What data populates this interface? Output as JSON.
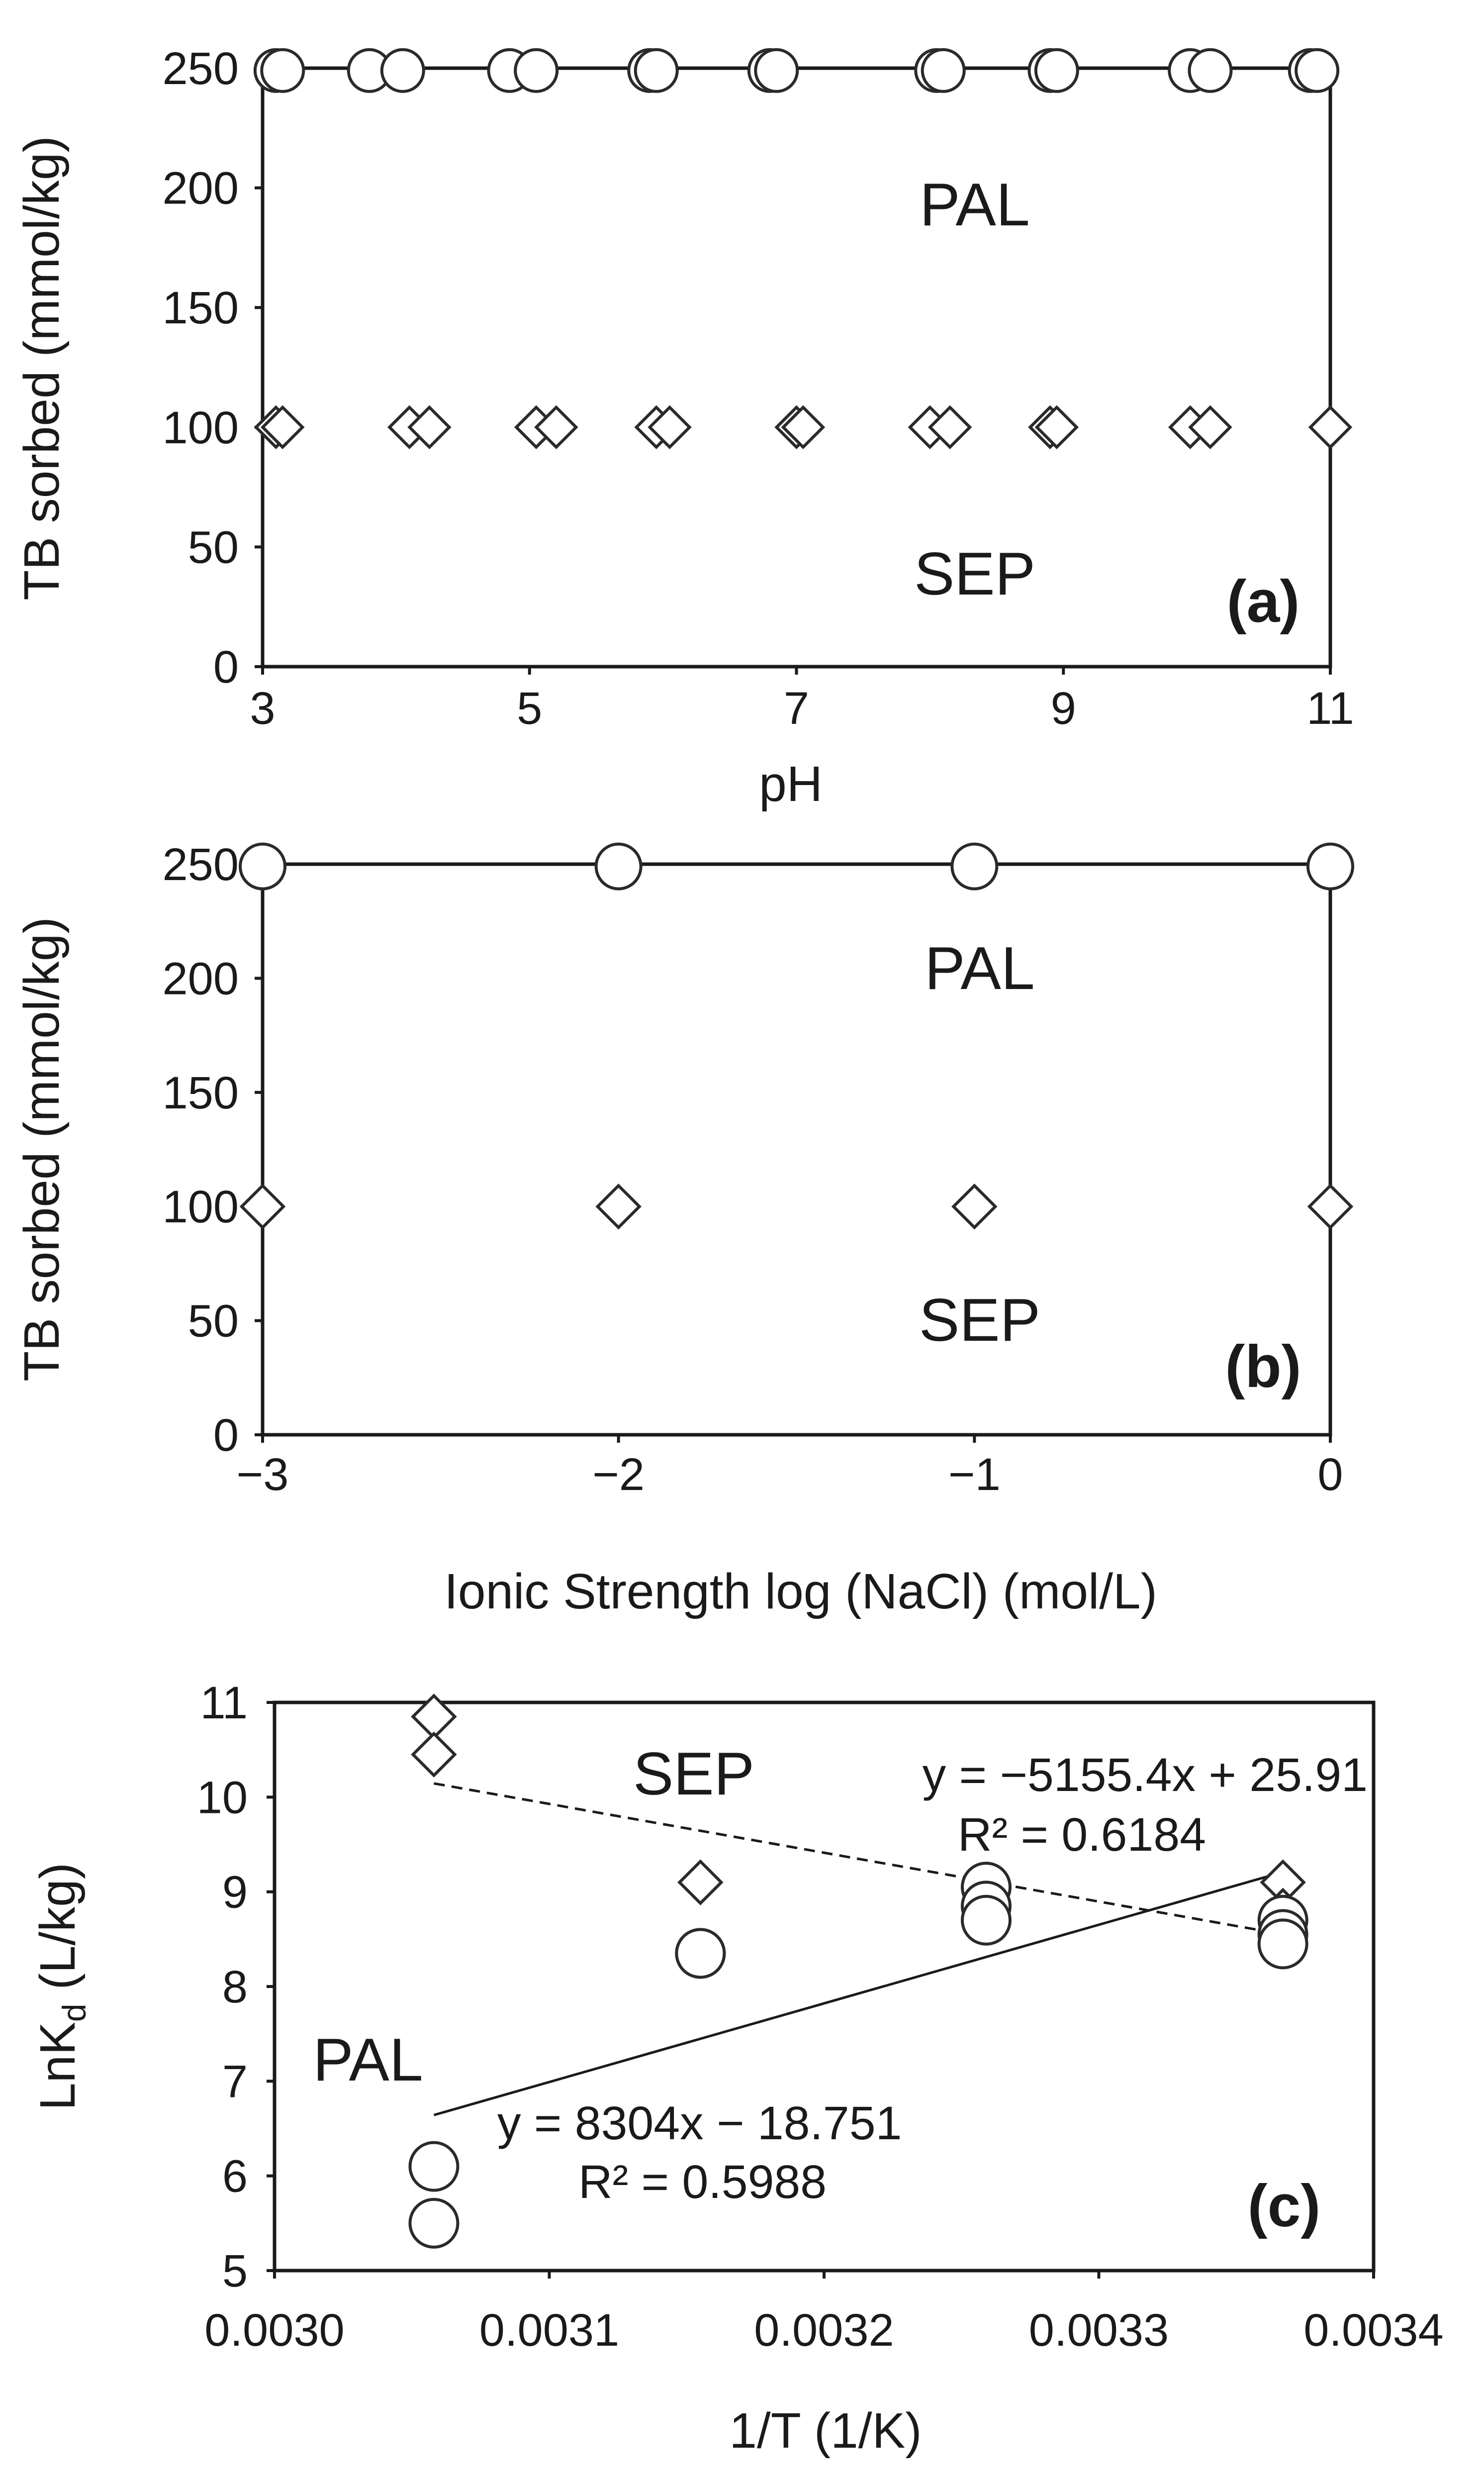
{
  "chart_data": [
    {
      "type": "scatter",
      "panel": "(a)",
      "xlabel": "pH",
      "ylabel": "TB sorbed (mmol/kg)",
      "xlim": [
        3,
        11
      ],
      "ylim": [
        0,
        250
      ],
      "x_ticks": [
        "3",
        "5",
        "7",
        "9",
        "11"
      ],
      "y_ticks": [
        "0",
        "50",
        "100",
        "150",
        "200",
        "250"
      ],
      "annotations": {
        "pal": "PAL",
        "sep": "SEP",
        "panel_label": "(a)"
      },
      "series": [
        {
          "name": "PAL",
          "marker": "circle",
          "x": [
            3.1,
            3.15,
            3.8,
            4.05,
            4.85,
            5.05,
            5.9,
            5.95,
            6.8,
            6.85,
            8.05,
            8.1,
            8.9,
            8.95,
            9.95,
            10.1,
            10.85,
            10.9
          ],
          "y": [
            249,
            249,
            249,
            249,
            249,
            249,
            249,
            249,
            249,
            249,
            249,
            249,
            249,
            249,
            249,
            249,
            249,
            249
          ]
        },
        {
          "name": "SEP",
          "marker": "diamond",
          "x": [
            3.1,
            3.15,
            4.1,
            4.25,
            5.05,
            5.2,
            5.95,
            6.05,
            7.0,
            7.05,
            8.0,
            8.15,
            8.9,
            8.95,
            9.95,
            10.1,
            11.0
          ],
          "y": [
            100,
            100,
            100,
            100,
            100,
            100,
            100,
            100,
            100,
            100,
            100,
            100,
            100,
            100,
            100,
            100,
            100
          ]
        }
      ]
    },
    {
      "type": "scatter",
      "panel": "(b)",
      "xlabel": "Ionic Strength log (NaCl) (mol/L)",
      "ylabel": "TB sorbed (mmol/kg)",
      "xlim": [
        -3,
        0
      ],
      "ylim": [
        0,
        250
      ],
      "x_ticks": [
        "−3",
        "−2",
        "−1",
        "0"
      ],
      "y_ticks": [
        "0",
        "50",
        "100",
        "150",
        "200",
        "250"
      ],
      "annotations": {
        "pal": "PAL",
        "sep": "SEP",
        "panel_label": "(b)"
      },
      "series": [
        {
          "name": "PAL",
          "marker": "circle",
          "x": [
            -3,
            -2,
            -1,
            0
          ],
          "y": [
            249,
            249,
            249,
            249
          ]
        },
        {
          "name": "SEP",
          "marker": "diamond",
          "x": [
            -3,
            -2,
            -1,
            0
          ],
          "y": [
            100,
            100,
            100,
            100
          ]
        }
      ]
    },
    {
      "type": "scatter",
      "panel": "(c)",
      "xlabel": "1/T (1/K)",
      "ylabel_main": "LnK",
      "ylabel_sub": "d",
      "ylabel_tail": " (L/kg)",
      "xlim": [
        0.003,
        0.0034
      ],
      "ylim": [
        5,
        11
      ],
      "x_ticks": [
        "0.0030",
        "0.0031",
        "0.0032",
        "0.0033",
        "0.0034"
      ],
      "y_ticks": [
        "5",
        "6",
        "7",
        "8",
        "9",
        "10",
        "11"
      ],
      "annotations": {
        "sep": "SEP",
        "pal": "PAL",
        "panel_label": "(c)",
        "sep_equation": "y = −5155.4x + 25.91",
        "sep_r2": "R² = 0.6184",
        "pal_equation": "y = 8304x − 18.751",
        "pal_r2": "R² = 0.5988"
      },
      "series": [
        {
          "name": "SEP",
          "marker": "diamond",
          "x": [
            0.003058,
            0.003058,
            0.003155,
            0.003259,
            0.003259,
            0.003367,
            0.003367
          ],
          "y": [
            10.85,
            10.45,
            9.1,
            8.95,
            8.8,
            9.1,
            8.8
          ]
        },
        {
          "name": "PAL",
          "marker": "circle",
          "x": [
            0.003058,
            0.003058,
            0.003155,
            0.003155,
            0.003259,
            0.003259,
            0.003259,
            0.003367,
            0.003367,
            0.003367
          ],
          "y": [
            6.1,
            5.5,
            8.35,
            8.35,
            9.05,
            8.85,
            8.7,
            8.7,
            8.55,
            8.45
          ]
        }
      ],
      "fits": [
        {
          "name": "SEP",
          "style": "dashed",
          "slope": -5155.4,
          "intercept": 25.91,
          "x_range": [
            0.003058,
            0.003367
          ]
        },
        {
          "name": "PAL",
          "style": "solid",
          "slope": 8304,
          "intercept": -18.751,
          "x_range": [
            0.003058,
            0.003367
          ]
        }
      ]
    }
  ]
}
